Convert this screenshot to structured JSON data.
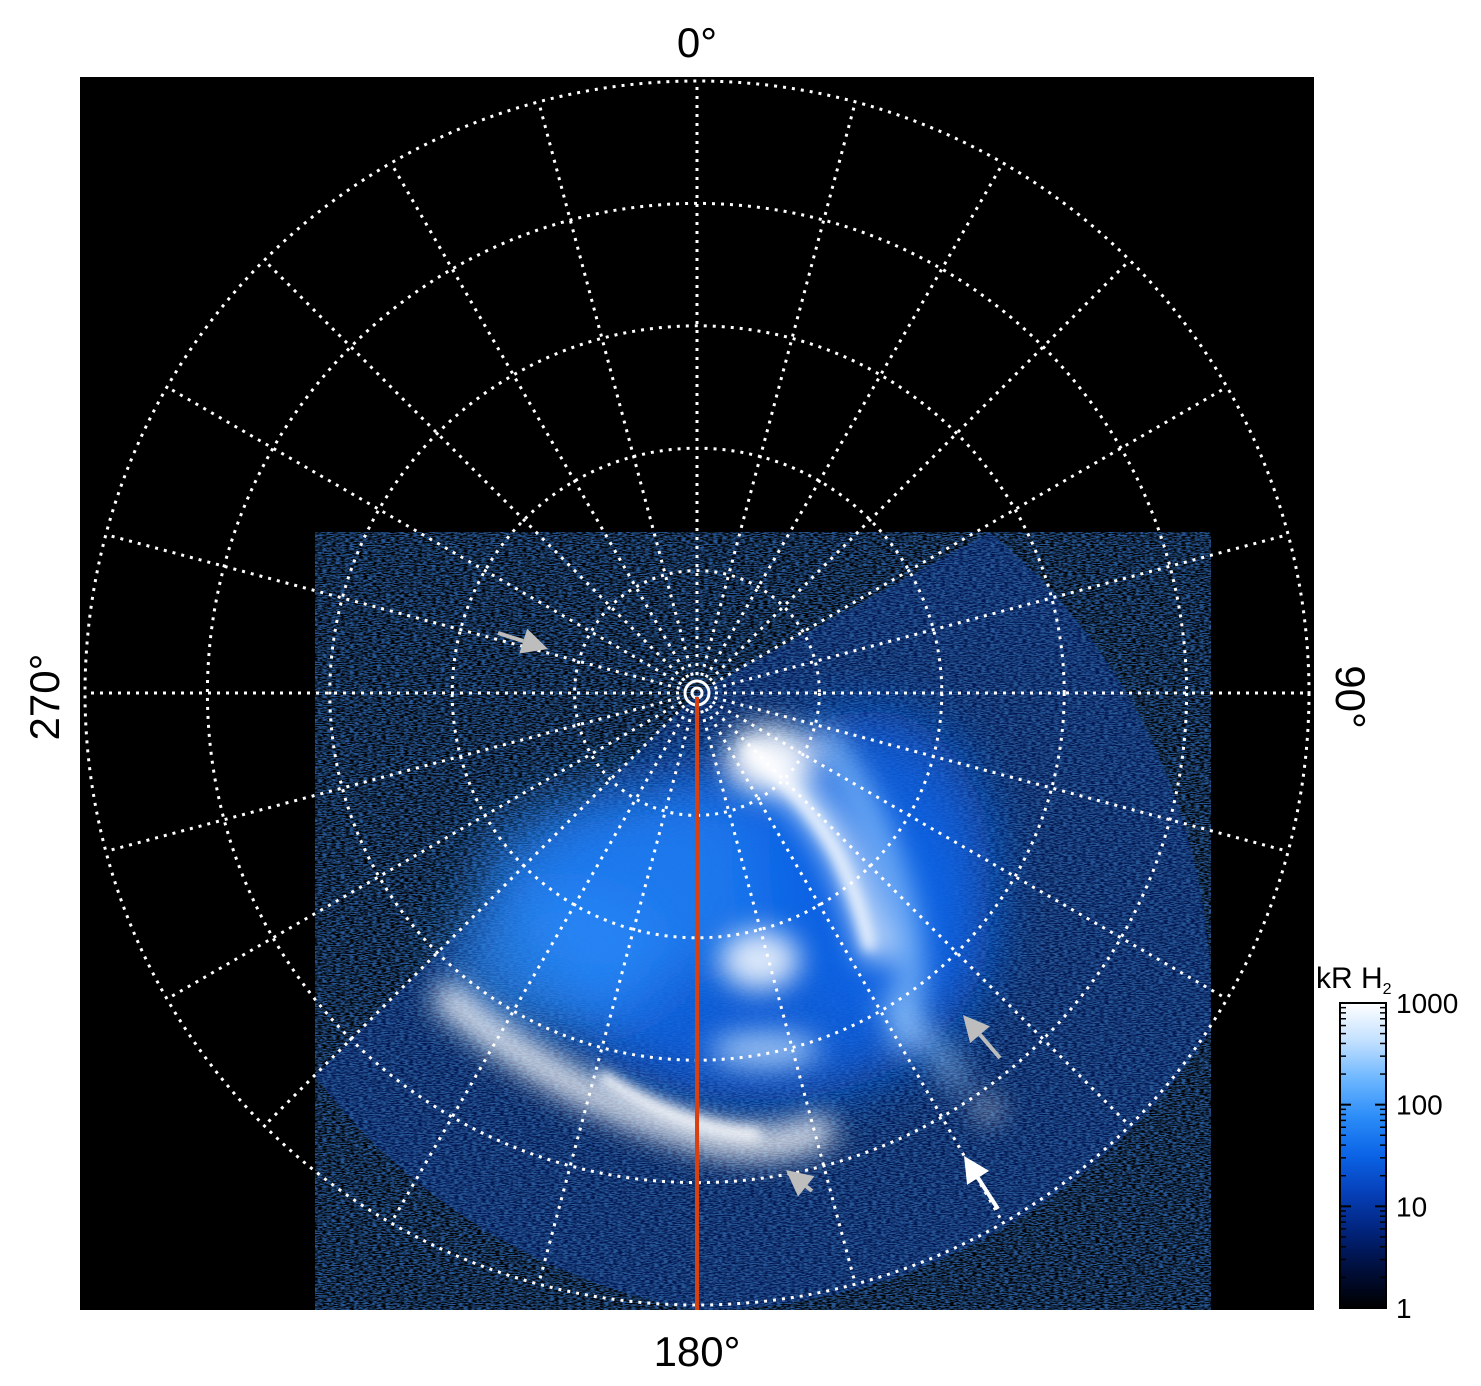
{
  "chart_data": {
    "type": "heatmap",
    "projection": "polar",
    "angular_labels": [
      {
        "angle_deg": 0,
        "text": "0°"
      },
      {
        "angle_deg": 90,
        "text": "90°"
      },
      {
        "angle_deg": 180,
        "text": "180°"
      },
      {
        "angle_deg": 270,
        "text": "270°"
      }
    ],
    "meridian_step_deg": 15,
    "ring_count": 5,
    "colorbar": {
      "title_main": "kR H",
      "title_sub": "2",
      "scale": "log",
      "range": [
        1,
        1000
      ],
      "ticks": [
        {
          "value": 1,
          "label": "1"
        },
        {
          "value": 10,
          "label": "10"
        },
        {
          "value": 100,
          "label": "100"
        },
        {
          "value": 1000,
          "label": "1000"
        }
      ],
      "colors": [
        "#000000",
        "#000e3a",
        "#01237a",
        "#063fb8",
        "#0b63e6",
        "#2b8cf8",
        "#6cb6ff",
        "#c2e0ff",
        "#ffffff"
      ]
    },
    "colors": {
      "background": "#000000",
      "grid": "#ffffff",
      "meridian_line": "#d9400f",
      "arrow_gray": "#bdbdbd",
      "arrow_white": "#ffffff"
    },
    "grid": true
  }
}
